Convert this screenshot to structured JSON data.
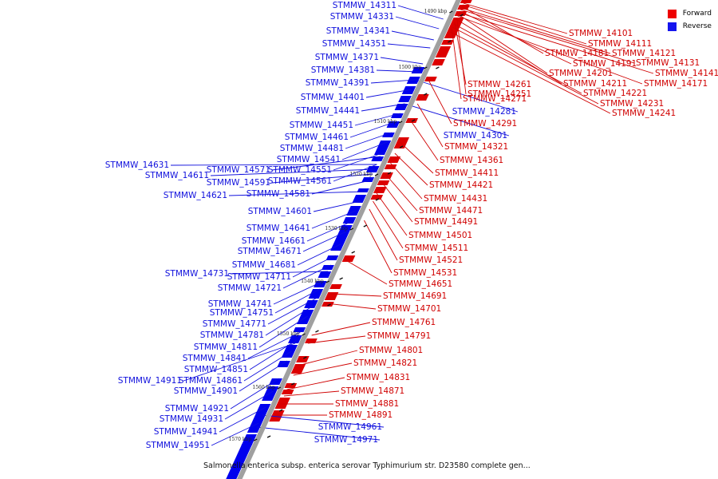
{
  "caption": "Salmonella enterica subsp. enterica serovar Typhimurium str. D23580 complete gen...",
  "legend": {
    "forward": "Forward",
    "reverse": "Reverse"
  },
  "colors": {
    "forward": "#dd0000",
    "reverse": "#0000ee",
    "backbone": "#a0a0a0"
  },
  "ticks": [
    "1490 kbp",
    "1500 kbp",
    "1510 kbp",
    "1520 kbp",
    "1530 kbp",
    "1540 kbp",
    "1550 kbp",
    "1560 kbp",
    "1570 kbp"
  ],
  "reverse_genes": [
    "STMMW_14311",
    "STMMW_14331",
    "STMMW_14341",
    "STMMW_14351",
    "STMMW_14371",
    "STMMW_14381",
    "STMMW_14391",
    "STMMW_14401",
    "STMMW_14441",
    "STMMW_14451",
    "STMMW_14461",
    "STMMW_14481",
    "STMMW_14541",
    "STMMW_14631",
    "STMMW_14571",
    "STMMW_14551",
    "STMMW_14611",
    "STMMW_14591",
    "STMMW_14561",
    "STMMW_14621",
    "STMMW_14581",
    "STMMW_14601",
    "STMMW_14641",
    "STMMW_14661",
    "STMMW_14671",
    "STMMW_14681",
    "STMMW_14731",
    "STMMW_14711",
    "STMMW_14721",
    "STMMW_14741",
    "STMMW_14751",
    "STMMW_14771",
    "STMMW_14781",
    "STMMW_14811",
    "STMMW_14841",
    "STMMW_14851",
    "STMMW_14911",
    "STMMW_14861",
    "STMMW_14901",
    "STMMW_14921",
    "STMMW_14931",
    "STMMW_14941",
    "STMMW_14951",
    "STMMW_14961",
    "STMMW_14971",
    "STMMW_14281",
    "STMMW_14301"
  ],
  "forward_genes": [
    "STMMW_14101",
    "STMMW_14111",
    "STMMW_14181",
    "STMMW_14121",
    "STMMW_14131",
    "STMMW_14191",
    "STMMW_14141",
    "STMMW_14201",
    "STMMW_14171",
    "STMMW_14251",
    "STMMW_14211",
    "STMMW_14261",
    "STMMW_14221",
    "STMMW_14231",
    "STMMW_14271",
    "STMMW_14241",
    "STMMW_14291",
    "STMMW_14321",
    "STMMW_14361",
    "STMMW_14411",
    "STMMW_14421",
    "STMMW_14431",
    "STMMW_14471",
    "STMMW_14491",
    "STMMW_14501",
    "STMMW_14511",
    "STMMW_14521",
    "STMMW_14531",
    "STMMW_14651",
    "STMMW_14691",
    "STMMW_14701",
    "STMMW_14761",
    "STMMW_14791",
    "STMMW_14801",
    "STMMW_14821",
    "STMMW_14831",
    "STMMW_14871",
    "STMMW_14881",
    "STMMW_14891"
  ]
}
